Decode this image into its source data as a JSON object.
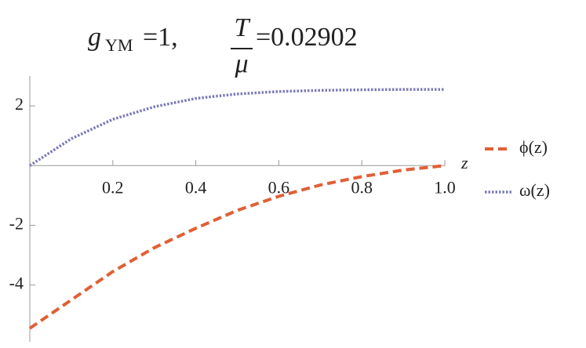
{
  "chart_data": {
    "type": "line",
    "title_parts": {
      "g": "g",
      "sub": "YM",
      "eq1": "=1,",
      "num": "T",
      "den": "μ",
      "eq2": "=0.02902"
    },
    "x_label": "z",
    "x": [
      0,
      0.1,
      0.2,
      0.3,
      0.4,
      0.5,
      0.6,
      0.7,
      0.8,
      0.9,
      1.0
    ],
    "series": [
      {
        "name": "ϕ(z)",
        "color": "#e15f37",
        "style": "dashed",
        "values": [
          -5.45,
          -4.5,
          -3.55,
          -2.75,
          -2.1,
          -1.5,
          -1.03,
          -0.65,
          -0.37,
          -0.15,
          0
        ]
      },
      {
        "name": "ω(z)",
        "color": "#7b7bb8",
        "style": "dotted",
        "values": [
          0,
          0.9,
          1.55,
          1.97,
          2.25,
          2.4,
          2.48,
          2.52,
          2.54,
          2.55,
          2.55
        ]
      }
    ],
    "xlim": [
      0,
      1.0
    ],
    "ylim": [
      -5.9,
      3.0
    ],
    "xticks": [
      0.2,
      0.4,
      0.6,
      0.8,
      {
        "value": 1,
        "label": "1.0"
      }
    ],
    "yticks": [
      -4,
      -2,
      2
    ],
    "grid": false,
    "legend": "right"
  }
}
